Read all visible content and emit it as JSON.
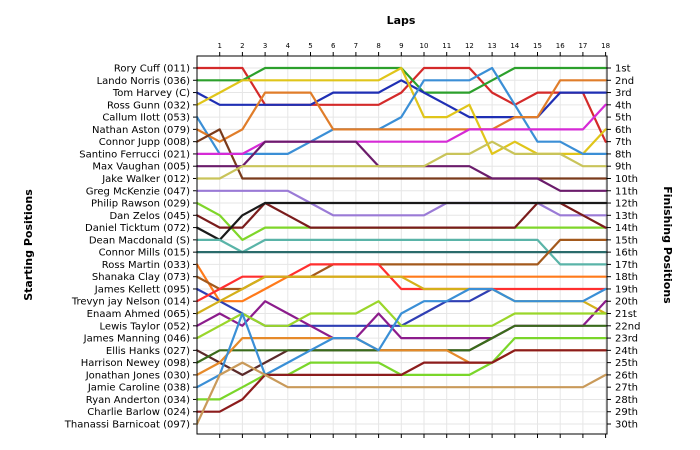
{
  "chart_data": {
    "type": "line",
    "title": "",
    "xlabel": "Laps",
    "ylabel_left": "Starting Positions",
    "ylabel_right": "Finishing Positions",
    "laps": [
      1,
      2,
      3,
      4,
      5,
      6,
      7,
      8,
      9,
      10,
      11,
      12,
      13,
      14,
      15,
      16,
      17,
      18
    ],
    "finishing_positions": [
      "1st",
      "2nd",
      "3rd",
      "4th",
      "5th",
      "6th",
      "7th",
      "8th",
      "9th",
      "10th",
      "11th",
      "12th",
      "13th",
      "14th",
      "15th",
      "16th",
      "17th",
      "18th",
      "19th",
      "20th",
      "21st",
      "22nd",
      "23rd",
      "24th",
      "25th",
      "26th",
      "27th",
      "28th",
      "29th",
      "30th"
    ],
    "grid": true,
    "series": [
      {
        "name": "Rory Cuff (011)",
        "color": "#d42a2a",
        "positions": [
          1,
          1,
          1,
          4,
          4,
          4,
          4,
          4,
          4,
          3,
          1,
          1,
          1,
          3,
          4,
          3,
          3,
          3,
          7
        ]
      },
      {
        "name": "Lando Norris (036)",
        "color": "#2ca02c",
        "positions": [
          2,
          2,
          2,
          1,
          1,
          1,
          1,
          1,
          1,
          1,
          3,
          3,
          3,
          2,
          1,
          1,
          1,
          1,
          1
        ]
      },
      {
        "name": "Tom Harvey (C)",
        "color": "#1f2fb4",
        "positions": [
          3,
          4,
          4,
          4,
          4,
          4,
          3,
          3,
          3,
          2,
          3,
          4,
          5,
          5,
          5,
          5,
          3,
          3,
          3
        ]
      },
      {
        "name": "Ross Gunn (032)",
        "color": "#e0c51a",
        "positions": [
          4,
          3,
          2,
          2,
          2,
          2,
          2,
          2,
          2,
          1,
          5,
          5,
          4,
          8,
          7,
          8,
          8,
          8,
          6
        ]
      },
      {
        "name": "Callum Ilott (053)",
        "color": "#3b8fd6",
        "positions": [
          5,
          8,
          8,
          8,
          8,
          7,
          6,
          6,
          6,
          5,
          2,
          2,
          2,
          1,
          4,
          7,
          7,
          8,
          8
        ]
      },
      {
        "name": "Nathan Aston (079)",
        "color": "#e07d2a",
        "positions": [
          6,
          7,
          6,
          3,
          3,
          3,
          6,
          6,
          6,
          6,
          6,
          6,
          6,
          6,
          5,
          5,
          2,
          2,
          2
        ]
      },
      {
        "name": "Connor Jupp (008)",
        "color": "#7a3b1c",
        "positions": [
          7,
          6,
          10,
          10,
          10,
          10,
          10,
          10,
          10,
          10,
          10,
          10,
          10,
          10,
          10,
          10,
          10,
          10,
          10
        ]
      },
      {
        "name": "Santino Ferrucci (021)",
        "color": "#d62ad6",
        "positions": [
          8,
          8,
          8,
          7,
          7,
          7,
          7,
          7,
          7,
          7,
          7,
          7,
          6,
          6,
          6,
          6,
          6,
          6,
          4
        ]
      },
      {
        "name": "Max Vaughan (005)",
        "color": "#6b1c6b",
        "positions": [
          9,
          9,
          9,
          7,
          7,
          7,
          7,
          7,
          9,
          9,
          9,
          9,
          9,
          10,
          10,
          10,
          11,
          11,
          11
        ]
      },
      {
        "name": "Jake Walker (012)",
        "color": "#c9c45a",
        "positions": [
          10,
          10,
          9,
          9,
          9,
          9,
          9,
          9,
          9,
          9,
          9,
          8,
          8,
          7,
          8,
          8,
          8,
          9,
          9
        ]
      },
      {
        "name": "Greg McKenzie (047)",
        "color": "#9a7ad6",
        "positions": [
          11,
          11,
          11,
          11,
          11,
          12,
          13,
          13,
          13,
          13,
          13,
          12,
          12,
          12,
          12,
          12,
          13,
          13,
          13
        ]
      },
      {
        "name": "Philip Rawson (029)",
        "color": "#7fd62a",
        "positions": [
          12,
          13,
          15,
          14,
          14,
          14,
          14,
          14,
          14,
          14,
          14,
          14,
          14,
          14,
          14,
          14,
          14,
          14,
          14
        ]
      },
      {
        "name": "Dan Zelos (045)",
        "color": "#7a1c1c",
        "positions": [
          13,
          14,
          14,
          12,
          13,
          14,
          14,
          14,
          14,
          14,
          14,
          14,
          14,
          14,
          14,
          12,
          12,
          13,
          14
        ]
      },
      {
        "name": "Daniel Ticktum (072)",
        "color": "#1a1a1a",
        "positions": [
          14,
          15,
          13,
          12,
          12,
          12,
          12,
          12,
          12,
          12,
          12,
          12,
          12,
          12,
          12,
          12,
          12,
          12,
          12
        ]
      },
      {
        "name": "Dean Macdonald (S)",
        "color": "#5ab4a8",
        "positions": [
          15,
          15,
          16,
          15,
          15,
          15,
          15,
          15,
          15,
          15,
          15,
          15,
          15,
          15,
          15,
          15,
          17,
          17,
          17
        ]
      },
      {
        "name": "Connor Mills (015)",
        "color": "#2a6b6b",
        "positions": [
          16,
          16,
          16,
          16,
          16,
          16,
          16,
          16,
          16,
          16,
          16,
          16,
          16,
          16,
          16,
          16,
          16,
          16,
          16
        ]
      },
      {
        "name": "Ross Martin (033)",
        "color": "#ff7a1a",
        "positions": [
          17,
          20,
          20,
          19,
          18,
          18,
          18,
          18,
          18,
          18,
          18,
          18,
          18,
          18,
          18,
          18,
          18,
          18,
          18
        ]
      },
      {
        "name": "Shanaka Clay (073)",
        "color": "#a3591c",
        "positions": [
          18,
          19,
          19,
          18,
          18,
          18,
          17,
          17,
          17,
          17,
          17,
          17,
          17,
          17,
          17,
          17,
          15,
          15,
          15
        ]
      },
      {
        "name": "James Kellett (095)",
        "color": "#2f3fb4",
        "positions": [
          19,
          20,
          21,
          22,
          22,
          22,
          22,
          22,
          22,
          22,
          21,
          20,
          20,
          19
        ]
      },
      {
        "name": "Trevyn jay Nelson (014)",
        "color": "#ff2f2f",
        "positions": [
          20,
          19,
          18,
          18,
          18,
          17,
          17,
          17,
          17,
          19,
          19,
          19,
          19,
          19,
          19,
          19,
          19,
          19,
          19
        ]
      },
      {
        "name": "Enaam Ahmed (065)",
        "color": "#d4b01a",
        "positions": [
          21,
          20,
          19,
          18,
          18,
          18,
          18,
          18,
          18,
          18,
          19,
          19,
          19,
          19,
          20,
          20,
          20,
          20,
          21
        ]
      },
      {
        "name": "Lewis Taylor (052)",
        "color": "#8c1c8c",
        "positions": [
          22,
          21,
          22,
          20,
          21,
          22,
          23,
          23,
          21,
          23,
          23,
          23,
          23,
          23,
          22,
          22,
          22,
          22,
          20
        ]
      },
      {
        "name": "James Manning (046)",
        "color": "#9ad62a",
        "positions": [
          23,
          22,
          21,
          22,
          22,
          21,
          21,
          21,
          20,
          22,
          22,
          22,
          22,
          22,
          21,
          21,
          21,
          21,
          21
        ]
      },
      {
        "name": "Ellis Hanks (027)",
        "color": "#5b2a2a",
        "positions": [
          24,
          25,
          26,
          25,
          24,
          24,
          24,
          24,
          24,
          24,
          24,
          24,
          24,
          23
        ]
      },
      {
        "name": "Harrison Newey (098)",
        "color": "#3a6b1c",
        "positions": [
          25,
          24,
          24,
          24,
          24,
          24,
          24,
          24,
          24,
          24,
          24,
          24,
          24,
          23,
          22,
          22,
          22,
          22,
          22
        ]
      },
      {
        "name": "Jonathan Jones (030)",
        "color": "#e68a2a",
        "positions": [
          26,
          25,
          23,
          23,
          23,
          23,
          23,
          23,
          24,
          24,
          24,
          24,
          25,
          25,
          24,
          24,
          24,
          24,
          24
        ]
      },
      {
        "name": "Jamie Caroline (038)",
        "color": "#3a8fd6",
        "positions": [
          27,
          26,
          21,
          26,
          25,
          24,
          23,
          23,
          24,
          21,
          20,
          20,
          19,
          19,
          20,
          20,
          20,
          20,
          19
        ]
      },
      {
        "name": "Ryan Anderton (034)",
        "color": "#7ad62a",
        "positions": [
          28,
          28,
          27,
          26,
          26,
          25,
          25,
          25,
          25,
          26,
          26,
          26,
          26,
          25,
          23,
          23,
          23,
          23,
          23
        ]
      },
      {
        "name": "Charlie Barlow (024)",
        "color": "#8c1c1c",
        "positions": [
          29,
          29,
          28,
          26,
          26,
          26,
          26,
          26,
          26,
          26,
          25,
          25,
          25,
          25,
          24,
          24,
          24,
          24,
          24
        ]
      },
      {
        "name": "Thanassi Barnicoat (097)",
        "color": "#c99a5a",
        "positions": [
          30,
          26,
          25,
          26,
          27,
          27,
          27,
          27,
          27,
          27,
          27,
          27,
          27,
          27,
          27,
          27,
          27,
          27,
          26
        ]
      }
    ]
  }
}
